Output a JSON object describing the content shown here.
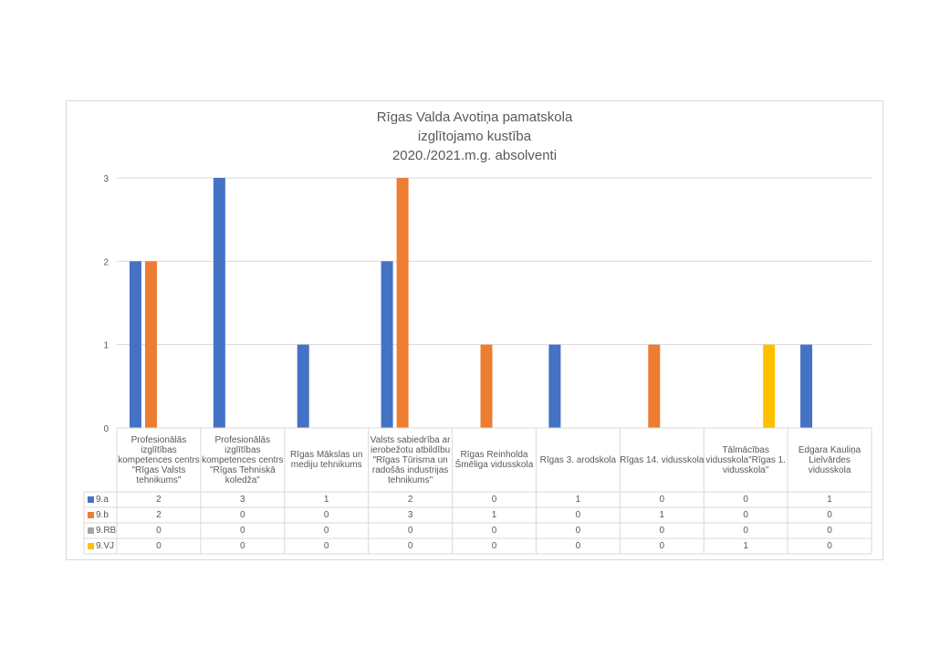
{
  "chart_data": {
    "type": "bar",
    "title_lines": [
      "Rīgas Valda Avotiņa pamatskola",
      "izglītojamo kustība",
      "2020./2021.m.g. absolventi"
    ],
    "xlabel": "",
    "ylabel": "",
    "ylim": [
      0,
      3
    ],
    "y_ticks": [
      "0",
      "1",
      "2",
      "3"
    ],
    "grid": true,
    "legend": "data-table",
    "categories": [
      [
        "Profesionālās",
        "izglītības",
        "kompetences centrs",
        "\"Rīgas Valsts",
        "tehnikums\""
      ],
      [
        "Profesionālās",
        "izglītības",
        "kompetences centrs",
        "\"Rīgas Tehniskā",
        "koledža\""
      ],
      [
        "Rīgas Mākslas un",
        "mediju tehnikums"
      ],
      [
        "Valsts sabiedrība ar",
        "ierobežotu atbildību",
        "\"Rīgas Tūrisma un",
        "radošās industrijas",
        "tehnikums\""
      ],
      [
        "Rīgas Reinholda",
        "Šmēliga vidusskola"
      ],
      [
        "Rīgas 3. arodskola"
      ],
      [
        "Rīgas 14. vidusskola"
      ],
      [
        "Tālmācības",
        "vidusskola\"Rīgas 1.",
        "vidusskola\""
      ],
      [
        "Edgara Kauliņa",
        "Lielvārdes",
        "vidusskola"
      ]
    ],
    "series": [
      {
        "name": "9.a",
        "color": "#4472c4",
        "values": [
          2,
          3,
          1,
          2,
          0,
          1,
          0,
          0,
          1
        ]
      },
      {
        "name": "9.b",
        "color": "#ed7d31",
        "values": [
          2,
          0,
          0,
          3,
          1,
          0,
          1,
          0,
          0
        ]
      },
      {
        "name": "9.RB",
        "color": "#a5a5a5",
        "values": [
          0,
          0,
          0,
          0,
          0,
          0,
          0,
          0,
          0
        ]
      },
      {
        "name": "9.VJ",
        "color": "#ffc000",
        "values": [
          0,
          0,
          0,
          0,
          0,
          0,
          0,
          1,
          0
        ]
      }
    ]
  }
}
